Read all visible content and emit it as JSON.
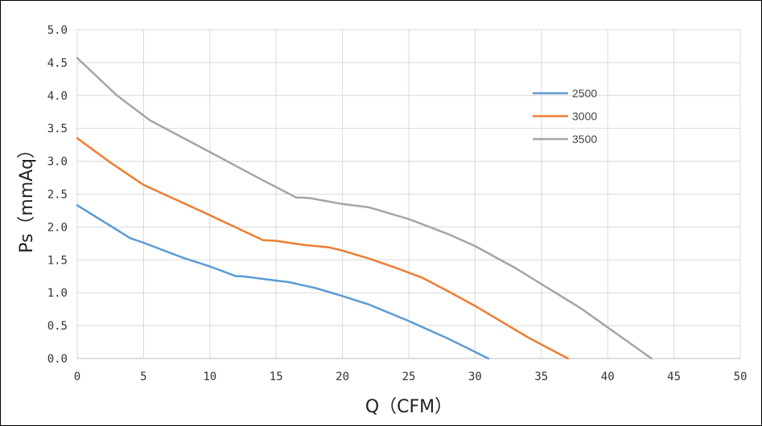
{
  "chart_data": {
    "type": "line",
    "xlabel": "Q（CFM）",
    "ylabel": "Ps（mmAq）",
    "xlim": [
      0,
      50
    ],
    "ylim": [
      0,
      5
    ],
    "x_ticks": [
      0,
      5,
      10,
      15,
      20,
      25,
      30,
      35,
      40,
      45,
      50
    ],
    "y_ticks": [
      "0.0",
      "0.5",
      "1.0",
      "1.5",
      "2.0",
      "2.5",
      "3.0",
      "3.5",
      "4.0",
      "4.5",
      "5.0"
    ],
    "grid": true,
    "legend_position": "top-right",
    "series": [
      {
        "name": "2500",
        "color": "#5B9BD5",
        "x": [
          0,
          4,
          5,
          8,
          10,
          12,
          12.5,
          14,
          16,
          18,
          20,
          22,
          25,
          28,
          31
        ],
        "y": [
          2.33,
          1.83,
          1.76,
          1.53,
          1.4,
          1.25,
          1.25,
          1.21,
          1.16,
          1.07,
          0.95,
          0.82,
          0.57,
          0.3,
          0.0
        ]
      },
      {
        "name": "3000",
        "color": "#ED7D31",
        "x": [
          0,
          2.5,
          5,
          10,
          14,
          15,
          17,
          19,
          20,
          22,
          24,
          26,
          28,
          30,
          34,
          37
        ],
        "y": [
          3.35,
          2.98,
          2.64,
          2.18,
          1.8,
          1.79,
          1.73,
          1.69,
          1.64,
          1.52,
          1.38,
          1.23,
          1.02,
          0.8,
          0.32,
          0.0
        ]
      },
      {
        "name": "3500",
        "color": "#A5A5A5",
        "x": [
          0,
          3,
          5.5,
          10,
          14,
          16.5,
          17.5,
          20,
          22,
          25,
          28,
          30,
          33,
          38,
          43.3
        ],
        "y": [
          4.57,
          4.0,
          3.62,
          3.14,
          2.71,
          2.45,
          2.44,
          2.35,
          2.3,
          2.12,
          1.89,
          1.71,
          1.38,
          0.76,
          0.0
        ]
      }
    ]
  }
}
